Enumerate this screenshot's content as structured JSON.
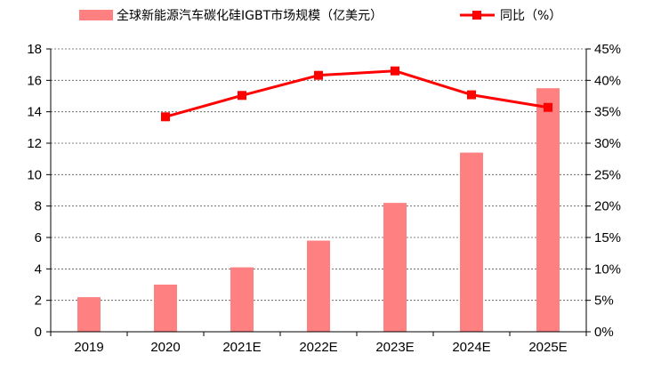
{
  "chart_data": {
    "type": "bar+line",
    "categories": [
      "2019",
      "2020",
      "2021E",
      "2022E",
      "2023E",
      "2024E",
      "2025E"
    ],
    "series": [
      {
        "name": "全球新能源汽车碳化硅IGBT市场规模（亿美元）",
        "type": "bar",
        "axis": "left",
        "color": "#ff8080",
        "values": [
          2.2,
          3.0,
          4.1,
          5.8,
          8.2,
          11.4,
          15.5
        ]
      },
      {
        "name": "同比（%）",
        "type": "line",
        "axis": "right",
        "color": "#ff0000",
        "values": [
          null,
          34.2,
          37.6,
          40.8,
          41.5,
          37.7,
          35.7
        ]
      }
    ],
    "y_left": {
      "min": 0,
      "max": 18,
      "ticks": [
        0,
        2,
        4,
        6,
        8,
        10,
        12,
        14,
        16,
        18
      ],
      "tick_labels": [
        "0",
        "2",
        "4",
        "6",
        "8",
        "10",
        "12",
        "14",
        "16",
        "18"
      ]
    },
    "y_right": {
      "min": 0,
      "max": 45,
      "ticks": [
        0,
        5,
        10,
        15,
        20,
        25,
        30,
        35,
        40,
        45
      ],
      "tick_labels": [
        "0%",
        "5%",
        "10%",
        "15%",
        "20%",
        "25%",
        "30%",
        "35%",
        "40%",
        "45%"
      ]
    },
    "legend": [
      {
        "label": "全球新能源汽车碳化硅IGBT市场规模（亿美元）",
        "marker": "bar",
        "color": "#ff8080"
      },
      {
        "label": "同比（%）",
        "marker": "line-square",
        "color": "#ff0000"
      }
    ],
    "legend_position": "top",
    "grid": "horizontal-dashed",
    "title": "",
    "xlabel": "",
    "ylabel": ""
  }
}
